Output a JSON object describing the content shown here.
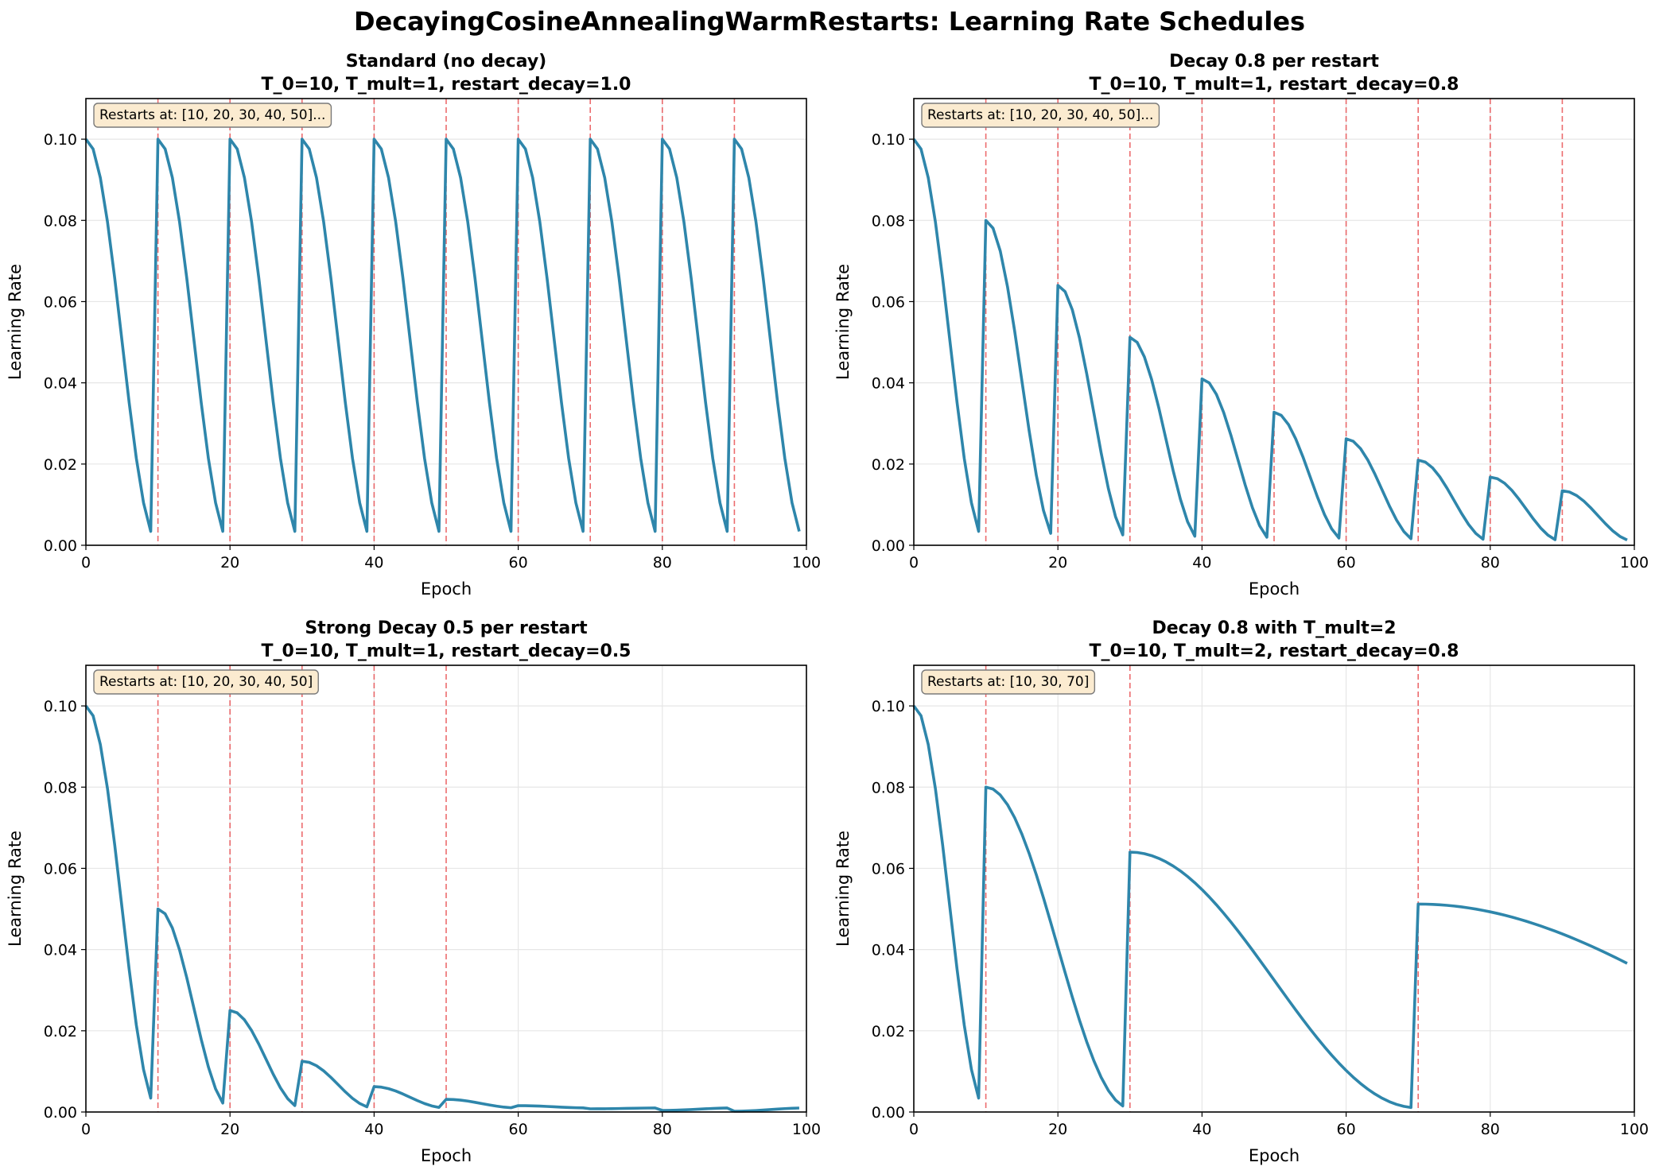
{
  "figure": {
    "title": "DecayingCosineAnnealingWarmRestarts: Learning Rate Schedules"
  },
  "colors": {
    "line": "#2e86ab",
    "restart_line": "#e8484a",
    "annotation_fill": "#fbebd0",
    "annotation_edge": "#7a7a7a",
    "grid": "#e6e6e6"
  },
  "chart_data": [
    {
      "type": "line",
      "title": "Standard (no decay)",
      "subtitle": "T_0=10, T_mult=1, restart_decay=1.0",
      "xlabel": "Epoch",
      "ylabel": "Learning Rate",
      "xlim": [
        0,
        100
      ],
      "ylim": [
        0,
        0.11
      ],
      "xticks": [
        "0",
        "20",
        "40",
        "60",
        "80",
        "100"
      ],
      "yticks": [
        "0.00",
        "0.02",
        "0.04",
        "0.06",
        "0.08",
        "0.10"
      ],
      "grid": true,
      "annotation": "Restarts at: [10, 20, 30, 40, 50]...",
      "params": {
        "base_lr": 0.1,
        "eta_min": 0.001,
        "T_0": 10,
        "T_mult": 1,
        "restart_decay": 1.0,
        "epochs": 100
      },
      "restarts": [
        10,
        20,
        30,
        40,
        50,
        60,
        70,
        80,
        90
      ]
    },
    {
      "type": "line",
      "title": "Decay 0.8 per restart",
      "subtitle": "T_0=10, T_mult=1, restart_decay=0.8",
      "xlabel": "Epoch",
      "ylabel": "Learning Rate",
      "xlim": [
        0,
        100
      ],
      "ylim": [
        0,
        0.11
      ],
      "xticks": [
        "0",
        "20",
        "40",
        "60",
        "80",
        "100"
      ],
      "yticks": [
        "0.00",
        "0.02",
        "0.04",
        "0.06",
        "0.08",
        "0.10"
      ],
      "grid": true,
      "annotation": "Restarts at: [10, 20, 30, 40, 50]...",
      "params": {
        "base_lr": 0.1,
        "eta_min": 0.001,
        "T_0": 10,
        "T_mult": 1,
        "restart_decay": 0.8,
        "epochs": 100
      },
      "restarts": [
        10,
        20,
        30,
        40,
        50,
        60,
        70,
        80,
        90
      ]
    },
    {
      "type": "line",
      "title": "Strong Decay 0.5 per restart",
      "subtitle": "T_0=10, T_mult=1, restart_decay=0.5",
      "xlabel": "Epoch",
      "ylabel": "Learning Rate",
      "xlim": [
        0,
        100
      ],
      "ylim": [
        0,
        0.11
      ],
      "xticks": [
        "0",
        "20",
        "40",
        "60",
        "80",
        "100"
      ],
      "yticks": [
        "0.00",
        "0.02",
        "0.04",
        "0.06",
        "0.08",
        "0.10"
      ],
      "grid": true,
      "annotation": "Restarts at: [10, 20, 30, 40, 50]",
      "params": {
        "base_lr": 0.1,
        "eta_min": 0.001,
        "T_0": 10,
        "T_mult": 1,
        "restart_decay": 0.5,
        "epochs": 100
      },
      "restarts": [
        10,
        20,
        30,
        40,
        50
      ]
    },
    {
      "type": "line",
      "title": "Decay 0.8 with T_mult=2",
      "subtitle": "T_0=10, T_mult=2, restart_decay=0.8",
      "xlabel": "Epoch",
      "ylabel": "Learning Rate",
      "xlim": [
        0,
        100
      ],
      "ylim": [
        0,
        0.11
      ],
      "xticks": [
        "0",
        "20",
        "40",
        "60",
        "80",
        "100"
      ],
      "yticks": [
        "0.00",
        "0.02",
        "0.04",
        "0.06",
        "0.08",
        "0.10"
      ],
      "grid": true,
      "annotation": "Restarts at: [10, 30, 70]",
      "params": {
        "base_lr": 0.1,
        "eta_min": 0.001,
        "T_0": 10,
        "T_mult": 2,
        "restart_decay": 0.8,
        "epochs": 100
      },
      "restarts": [
        10,
        30,
        70
      ]
    }
  ]
}
